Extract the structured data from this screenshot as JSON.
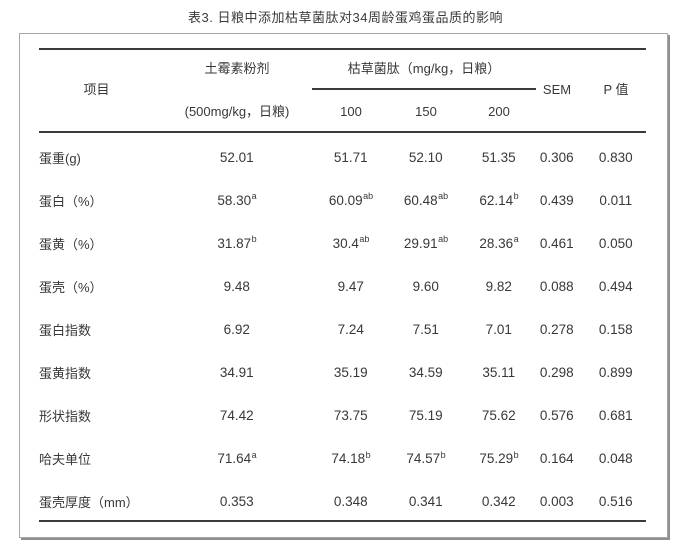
{
  "title": "表3. 日粮中添加枯草菌肽对34周龄蛋鸡蛋品质的影响",
  "table": {
    "header": {
      "item_col": "项目",
      "antibiotic_col_line1": "土霉素粉剂",
      "antibiotic_col_line2": "(500mg/kg，日粮)",
      "treatment_group": "枯草菌肽（mg/kg，日粮）",
      "treatment_doses": [
        "100",
        "150",
        "200"
      ],
      "sem_col": "SEM",
      "p_col": "P 值"
    },
    "rows": [
      {
        "label": "蛋重(g)",
        "cells": [
          {
            "v": "52.01"
          },
          {
            "v": "51.71"
          },
          {
            "v": "52.10"
          },
          {
            "v": "51.35"
          },
          {
            "v": "0.306"
          },
          {
            "v": "0.830"
          }
        ]
      },
      {
        "label": "蛋白（%）",
        "cells": [
          {
            "v": "58.30",
            "sup": "a"
          },
          {
            "v": "60.09",
            "sup": "ab"
          },
          {
            "v": "60.48",
            "sup": "ab"
          },
          {
            "v": "62.14",
            "sup": "b"
          },
          {
            "v": "0.439"
          },
          {
            "v": "0.011"
          }
        ]
      },
      {
        "label": "蛋黄（%）",
        "cells": [
          {
            "v": "31.87",
            "sup": "b"
          },
          {
            "v": "30.4",
            "sup": "ab"
          },
          {
            "v": "29.91",
            "sup": "ab"
          },
          {
            "v": "28.36",
            "sup": "a"
          },
          {
            "v": "0.461"
          },
          {
            "v": "0.050"
          }
        ]
      },
      {
        "label": "蛋壳（%）",
        "cells": [
          {
            "v": "9.48"
          },
          {
            "v": "9.47"
          },
          {
            "v": "9.60"
          },
          {
            "v": "9.82"
          },
          {
            "v": "0.088"
          },
          {
            "v": "0.494"
          }
        ]
      },
      {
        "label": "蛋白指数",
        "cells": [
          {
            "v": "6.92"
          },
          {
            "v": "7.24"
          },
          {
            "v": "7.51"
          },
          {
            "v": "7.01"
          },
          {
            "v": "0.278"
          },
          {
            "v": "0.158"
          }
        ]
      },
      {
        "label": "蛋黄指数",
        "cells": [
          {
            "v": "34.91"
          },
          {
            "v": "35.19"
          },
          {
            "v": "34.59"
          },
          {
            "v": "35.11"
          },
          {
            "v": "0.298"
          },
          {
            "v": "0.899"
          }
        ]
      },
      {
        "label": "形状指数",
        "cells": [
          {
            "v": "74.42"
          },
          {
            "v": "73.75"
          },
          {
            "v": "75.19"
          },
          {
            "v": "75.62"
          },
          {
            "v": "0.576"
          },
          {
            "v": "0.681"
          }
        ]
      },
      {
        "label": "哈夫单位",
        "cells": [
          {
            "v": "71.64",
            "sup": "a"
          },
          {
            "v": "74.18",
            "sup": "b"
          },
          {
            "v": "74.57",
            "sup": "b"
          },
          {
            "v": "75.29",
            "sup": "b"
          },
          {
            "v": "0.164"
          },
          {
            "v": "0.048"
          }
        ]
      },
      {
        "label": "蛋壳厚度（mm）",
        "cells": [
          {
            "v": "0.353"
          },
          {
            "v": "0.348"
          },
          {
            "v": "0.341"
          },
          {
            "v": "0.342"
          },
          {
            "v": "0.003"
          },
          {
            "v": "0.516"
          }
        ]
      }
    ]
  },
  "colors": {
    "text": "#383838",
    "rule": "#3b3b3b",
    "card_border": "#a6a6a6",
    "card_shadow": "#8f8f8f"
  }
}
